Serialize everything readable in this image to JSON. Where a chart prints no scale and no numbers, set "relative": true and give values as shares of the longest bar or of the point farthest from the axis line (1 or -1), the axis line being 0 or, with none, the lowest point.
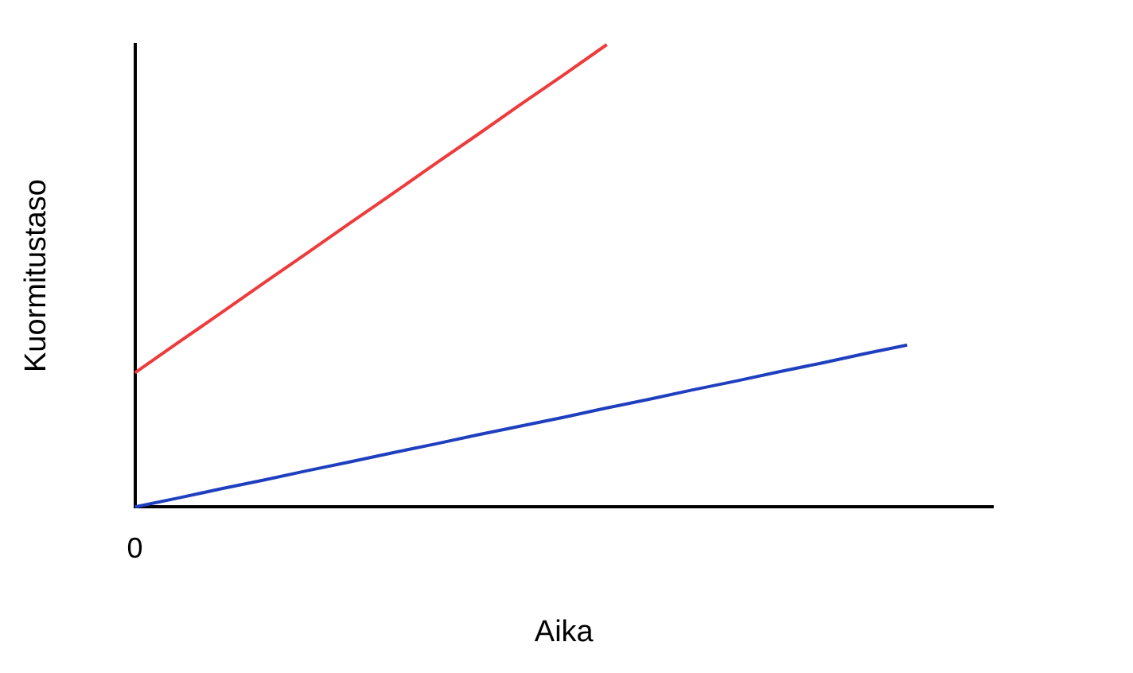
{
  "chart_data": {
    "type": "line",
    "relative": true,
    "xlabel": "Aika",
    "ylabel": "Kuormitustaso",
    "annotations": [
      "0"
    ],
    "categories": [
      null,
      null,
      null,
      null,
      null,
      null,
      null,
      null,
      null,
      null,
      null,
      null,
      null,
      null,
      null,
      null,
      null,
      null,
      null,
      null,
      null
    ],
    "series": [
      {
        "color": "#ee3b3b",
        "values": [
          0.29,
          0.355,
          0.419,
          0.484,
          0.548,
          0.613,
          0.677,
          0.742,
          0.806,
          0.871,
          0.935,
          1,
          null,
          null,
          null,
          null,
          null,
          null,
          null,
          null,
          null
        ]
      },
      {
        "color": "#1f3fbf",
        "values": [
          0,
          0.019,
          0.039,
          0.058,
          0.078,
          0.097,
          0.117,
          0.136,
          0.156,
          0.175,
          0.194,
          0.214,
          0.233,
          0.253,
          0.272,
          0.292,
          0.311,
          0.331,
          0.35,
          null,
          null
        ]
      }
    ]
  }
}
